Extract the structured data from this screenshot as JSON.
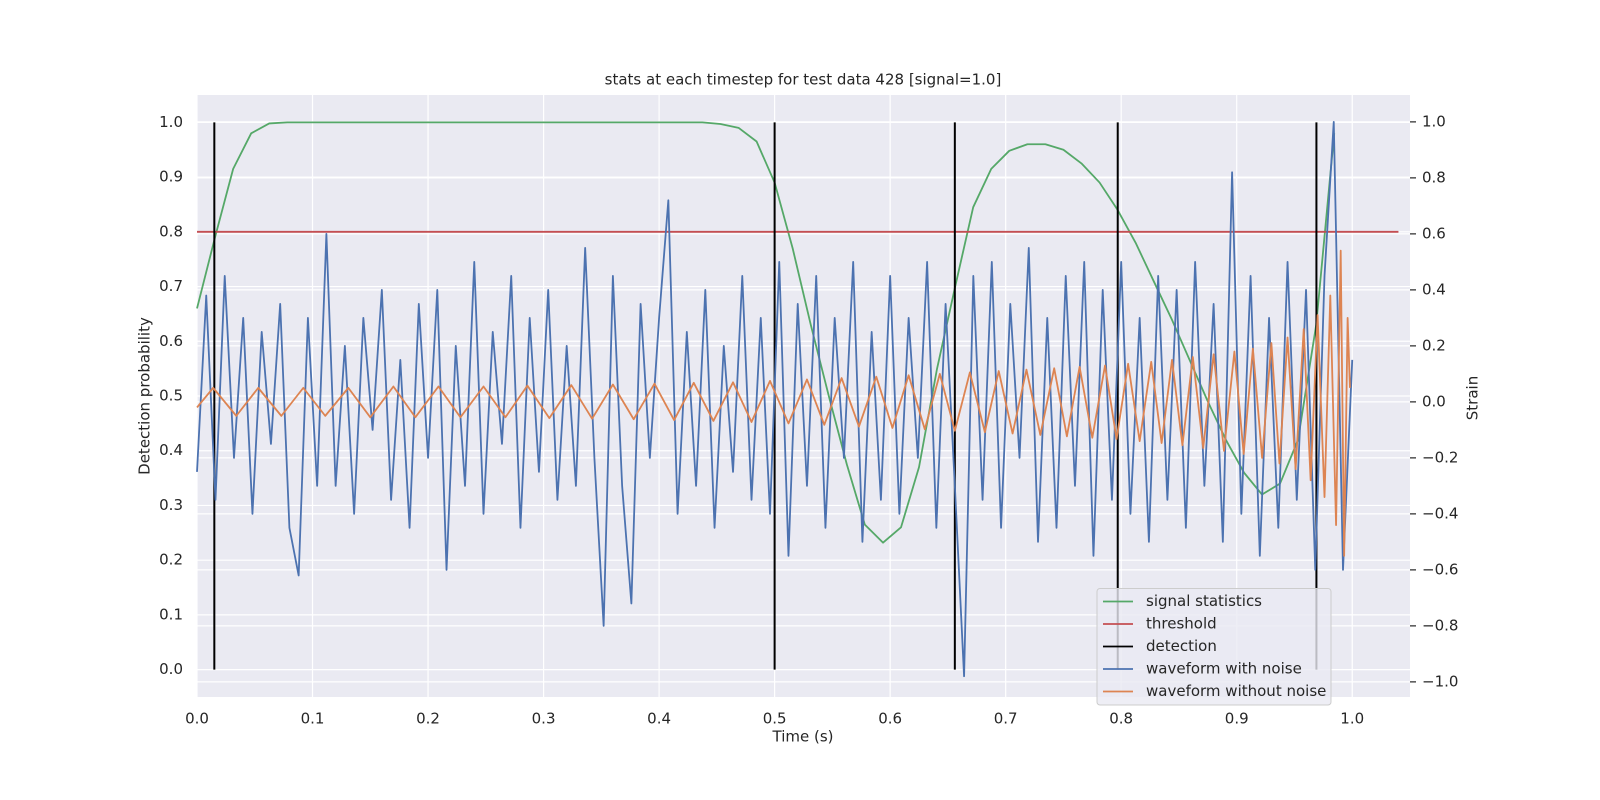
{
  "chart_data": {
    "type": "line",
    "title": "stats at each timestep for test data 428 [signal=1.0]",
    "xlabel": "Time (s)",
    "ylabel": "Detection probability",
    "y2label": "Strain",
    "xlim": [
      0,
      1.05
    ],
    "ylim": [
      -0.05,
      1.05
    ],
    "y2lim": [
      -1.054,
      1.096
    ],
    "xticks": [
      {
        "value": 0,
        "label": "0.0"
      },
      0.1,
      0.2,
      0.3,
      0.4,
      0.5,
      0.6,
      0.7,
      0.8,
      0.9,
      {
        "value": 1,
        "label": "1.0"
      }
    ],
    "yticks": [
      {
        "value": 0,
        "label": "0.0"
      },
      0.1,
      0.2,
      0.3,
      0.4,
      0.5,
      0.6,
      0.7,
      0.8,
      0.9,
      {
        "value": 1,
        "label": "1.0"
      }
    ],
    "y2ticks": [
      {
        "value": -1,
        "label": "−1.0"
      },
      {
        "value": -0.8,
        "label": "−0.8"
      },
      {
        "value": -0.6,
        "label": "−0.6"
      },
      {
        "value": -0.4,
        "label": "−0.4"
      },
      {
        "value": -0.2,
        "label": "−0.2"
      },
      {
        "value": 0,
        "label": "0.0"
      },
      0.2,
      0.4,
      0.6,
      0.8,
      {
        "value": 1,
        "label": "1.0"
      }
    ],
    "grid": true,
    "legend": "lower right",
    "series": [
      {
        "name": "signal statistics",
        "color": "#55a868",
        "x": [
          0,
          0.0156,
          0.0313,
          0.0469,
          0.0625,
          0.0781,
          0.0938,
          0.1094,
          0.125,
          0.1406,
          0.1563,
          0.1719,
          0.1875,
          0.2031,
          0.2188,
          0.2344,
          0.25,
          0.2656,
          0.2813,
          0.2969,
          0.3125,
          0.3281,
          0.3438,
          0.3594,
          0.375,
          0.3906,
          0.4063,
          0.4219,
          0.4375,
          0.4531,
          0.4688,
          0.4844,
          0.5,
          0.5156,
          0.5313,
          0.5469,
          0.5625,
          0.5781,
          0.5938,
          0.6094,
          0.625,
          0.6406,
          0.6563,
          0.6719,
          0.6875,
          0.7031,
          0.7188,
          0.7344,
          0.75,
          0.7656,
          0.7813,
          0.7969,
          0.8125,
          0.8281,
          0.8438,
          0.8594,
          0.875,
          0.8906,
          0.9063,
          0.9219,
          0.9375,
          0.9531,
          0.9688,
          0.9844
        ],
        "values": [
          0.66,
          0.79,
          0.915,
          0.98,
          0.998,
          1,
          1,
          1,
          1,
          1,
          1,
          1,
          1,
          1,
          1,
          1,
          1,
          1,
          1,
          1,
          1,
          1,
          1,
          1,
          1,
          1,
          1,
          1,
          1,
          0.997,
          0.99,
          0.965,
          0.89,
          0.77,
          0.63,
          0.5,
          0.375,
          0.265,
          0.232,
          0.26,
          0.37,
          0.55,
          0.7,
          0.845,
          0.915,
          0.948,
          0.96,
          0.96,
          0.95,
          0.925,
          0.89,
          0.84,
          0.78,
          0.71,
          0.64,
          0.565,
          0.49,
          0.42,
          0.36,
          0.32,
          0.34,
          0.42,
          0.63,
          0.98
        ]
      },
      {
        "name": "threshold",
        "color": "#c44e52",
        "x": [
          0,
          1.04
        ],
        "values": [
          0.8,
          0.8
        ]
      },
      {
        "name": "detection",
        "color": "#000000",
        "style": "vlines",
        "x": [
          0.015,
          0.5,
          0.656,
          0.797,
          0.969
        ],
        "ymin": 0,
        "ymax": 1
      },
      {
        "name": "waveform with noise",
        "color": "#4c72b0",
        "axis": "y2",
        "x": [
          0,
          0.008,
          0.016,
          0.024,
          0.032,
          0.04,
          0.048,
          0.056,
          0.064,
          0.072,
          0.08,
          0.088,
          0.096,
          0.104,
          0.112,
          0.12,
          0.128,
          0.136,
          0.144,
          0.152,
          0.16,
          0.168,
          0.176,
          0.184,
          0.192,
          0.2,
          0.208,
          0.216,
          0.224,
          0.232,
          0.24,
          0.248,
          0.256,
          0.264,
          0.272,
          0.28,
          0.288,
          0.296,
          0.304,
          0.312,
          0.32,
          0.328,
          0.336,
          0.344,
          0.352,
          0.36,
          0.368,
          0.376,
          0.384,
          0.392,
          0.4,
          0.408,
          0.416,
          0.424,
          0.432,
          0.44,
          0.448,
          0.456,
          0.464,
          0.472,
          0.48,
          0.488,
          0.496,
          0.504,
          0.512,
          0.52,
          0.528,
          0.536,
          0.544,
          0.552,
          0.56,
          0.568,
          0.576,
          0.584,
          0.592,
          0.6,
          0.608,
          0.616,
          0.624,
          0.632,
          0.64,
          0.648,
          0.656,
          0.664,
          0.672,
          0.68,
          0.688,
          0.696,
          0.704,
          0.712,
          0.72,
          0.728,
          0.736,
          0.744,
          0.752,
          0.76,
          0.768,
          0.776,
          0.784,
          0.792,
          0.8,
          0.808,
          0.816,
          0.824,
          0.832,
          0.84,
          0.848,
          0.856,
          0.864,
          0.872,
          0.88,
          0.888,
          0.896,
          0.904,
          0.912,
          0.92,
          0.928,
          0.936,
          0.944,
          0.952,
          0.96,
          0.968,
          0.976,
          0.984,
          0.992,
          1
        ],
        "values": [
          -0.25,
          0.38,
          -0.35,
          0.45,
          -0.2,
          0.3,
          -0.4,
          0.25,
          -0.15,
          0.35,
          -0.45,
          -0.62,
          0.3,
          -0.3,
          0.6,
          -0.3,
          0.2,
          -0.4,
          0.3,
          -0.1,
          0.4,
          -0.35,
          0.15,
          -0.45,
          0.35,
          -0.2,
          0.4,
          -0.6,
          0.2,
          -0.3,
          0.5,
          -0.4,
          0.25,
          -0.15,
          0.45,
          -0.45,
          0.3,
          -0.25,
          0.4,
          -0.35,
          0.2,
          -0.3,
          0.55,
          -0.2,
          -0.8,
          0.45,
          -0.3,
          -0.72,
          0.35,
          -0.2,
          0.3,
          0.72,
          -0.4,
          0.25,
          -0.3,
          0.4,
          -0.45,
          0.2,
          -0.25,
          0.45,
          -0.35,
          0.3,
          -0.4,
          0.5,
          -0.55,
          0.35,
          -0.3,
          0.45,
          -0.45,
          0.3,
          -0.2,
          0.5,
          -0.5,
          0.25,
          -0.35,
          0.45,
          -0.4,
          0.3,
          -0.2,
          0.5,
          -0.45,
          0.35,
          -0.3,
          -0.98,
          0.45,
          -0.35,
          0.5,
          -0.45,
          0.35,
          -0.2,
          0.55,
          -0.5,
          0.3,
          -0.45,
          0.45,
          -0.3,
          0.5,
          -0.55,
          0.4,
          -0.35,
          0.5,
          -0.4,
          0.3,
          -0.5,
          0.45,
          -0.35,
          0.4,
          -0.45,
          0.5,
          -0.3,
          0.35,
          -0.5,
          0.82,
          -0.4,
          0.45,
          -0.55,
          0.3,
          -0.45,
          0.5,
          -0.35,
          0.4,
          -0.6,
          0.45,
          1.0,
          -0.6,
          0.15
        ]
      },
      {
        "name": "waveform without noise",
        "color": "#dd8452",
        "axis": "y2",
        "x": [
          0,
          0.014,
          0.034,
          0.053,
          0.073,
          0.092,
          0.111,
          0.131,
          0.15,
          0.17,
          0.189,
          0.209,
          0.228,
          0.248,
          0.267,
          0.286,
          0.305,
          0.324,
          0.342,
          0.36,
          0.378,
          0.396,
          0.413,
          0.43,
          0.447,
          0.464,
          0.48,
          0.496,
          0.512,
          0.528,
          0.543,
          0.558,
          0.573,
          0.588,
          0.602,
          0.616,
          0.63,
          0.643,
          0.656,
          0.669,
          0.682,
          0.694,
          0.706,
          0.718,
          0.73,
          0.742,
          0.753,
          0.764,
          0.775,
          0.786,
          0.796,
          0.806,
          0.816,
          0.826,
          0.835,
          0.844,
          0.853,
          0.862,
          0.871,
          0.88,
          0.889,
          0.898,
          0.906,
          0.914,
          0.922,
          0.93,
          0.937,
          0.944,
          0.951,
          0.958,
          0.964,
          0.97,
          0.976,
          0.981,
          0.986,
          0.99,
          0.993,
          0.996,
          0.998
        ],
        "values": [
          -0.02,
          0.05,
          -0.05,
          0.05,
          -0.05,
          0.05,
          -0.05,
          0.05,
          -0.055,
          0.055,
          -0.055,
          0.055,
          -0.055,
          0.055,
          -0.055,
          0.058,
          -0.058,
          0.06,
          -0.06,
          0.062,
          -0.062,
          0.065,
          -0.065,
          0.068,
          -0.068,
          0.07,
          -0.072,
          0.075,
          -0.077,
          0.08,
          -0.082,
          0.085,
          -0.088,
          0.09,
          -0.093,
          0.095,
          -0.098,
          0.1,
          -0.103,
          0.105,
          -0.108,
          0.11,
          -0.113,
          0.115,
          -0.118,
          0.12,
          -0.123,
          0.125,
          -0.128,
          0.13,
          -0.133,
          0.136,
          -0.14,
          0.143,
          -0.147,
          0.15,
          -0.155,
          0.16,
          -0.165,
          0.17,
          -0.175,
          0.18,
          -0.186,
          0.19,
          -0.2,
          0.21,
          -0.22,
          0.23,
          -0.24,
          0.26,
          -0.28,
          0.31,
          -0.34,
          0.38,
          -0.44,
          0.54,
          -0.55,
          0.3,
          0.05
        ]
      }
    ]
  }
}
